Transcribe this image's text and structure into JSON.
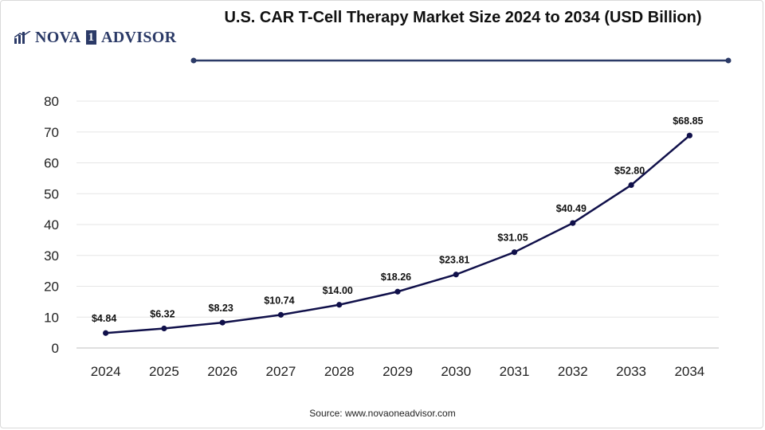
{
  "brand": {
    "logo_pre": "NOVA",
    "logo_box": "1",
    "logo_post": "ADVISOR"
  },
  "source": "Source: www.novaoneadvisor.com",
  "colors": {
    "line": "#10104a",
    "divider": "#2b3a67",
    "grid": "#e6e6e6"
  },
  "chart_data": {
    "type": "line",
    "title": "U.S. CAR T-Cell Therapy Market Size 2024 to 2034 (USD Billion)",
    "categories": [
      "2024",
      "2025",
      "2026",
      "2027",
      "2028",
      "2029",
      "2030",
      "2031",
      "2032",
      "2033",
      "2034"
    ],
    "series": [
      {
        "values": [
          4.84,
          6.32,
          8.23,
          10.74,
          14.0,
          18.26,
          23.81,
          31.05,
          40.49,
          52.8,
          68.85
        ],
        "labels": [
          "$4.84",
          "$6.32",
          "$8.23",
          "$10.74",
          "$14.00",
          "$18.26",
          "$23.81",
          "$31.05",
          "$40.49",
          "$52.80",
          "$68.85"
        ]
      }
    ],
    "ylim": [
      0,
      80
    ],
    "yticks": [
      0,
      10,
      20,
      30,
      40,
      50,
      60,
      70,
      80
    ],
    "xlabel": "",
    "ylabel": "",
    "grid": true,
    "legend": "none"
  }
}
